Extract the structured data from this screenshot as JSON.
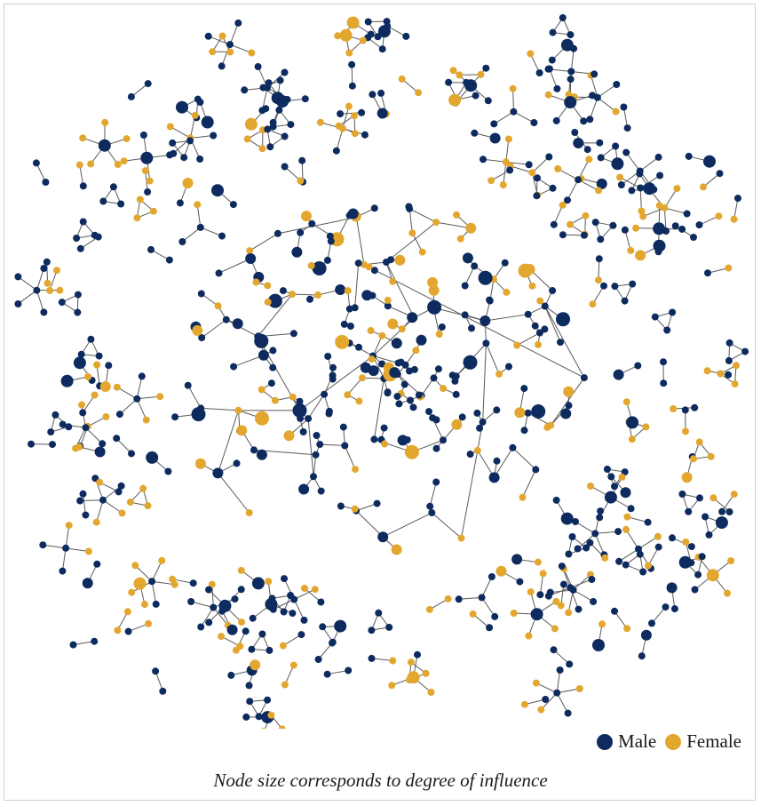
{
  "colors": {
    "male": "#0d2b5e",
    "female": "#e3a72f",
    "edge": "#5a5a5a"
  },
  "legend": {
    "male_label": "Male",
    "female_label": "Female"
  },
  "caption": "Node size corresponds to degree of influence"
}
